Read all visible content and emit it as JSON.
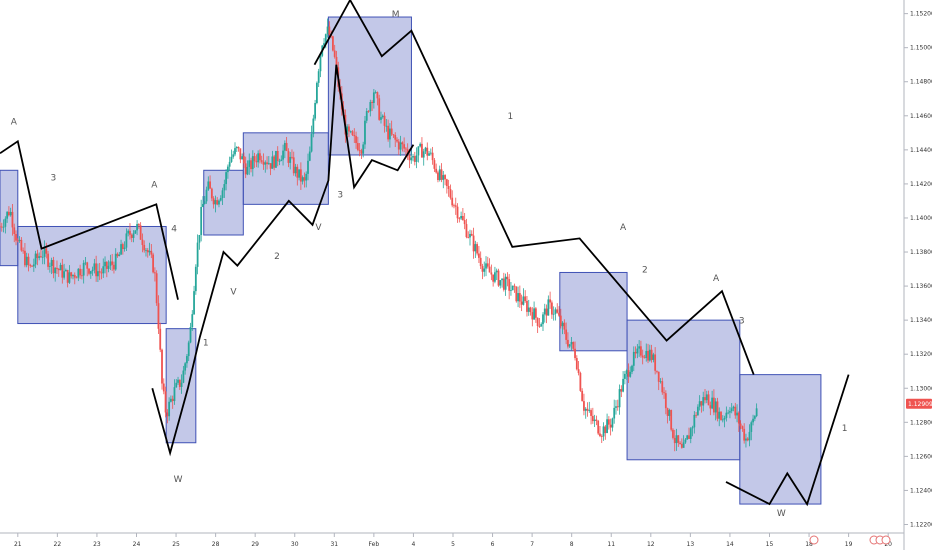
{
  "chart_data": {
    "type": "candlestick",
    "colors": {
      "up": "#26a69a",
      "down": "#ef5350",
      "box_fill": "#7986cb",
      "box_stroke": "#3f51b5",
      "wave_line": "#000000",
      "price_badge": "#ef5350"
    },
    "x_axis": {
      "ticks": [
        {
          "label": "21",
          "day": 0
        },
        {
          "label": "22",
          "day": 1
        },
        {
          "label": "23",
          "day": 2
        },
        {
          "label": "24",
          "day": 3
        },
        {
          "label": "25",
          "day": 4
        },
        {
          "label": "28",
          "day": 5
        },
        {
          "label": "29",
          "day": 6
        },
        {
          "label": "30",
          "day": 7
        },
        {
          "label": "31",
          "day": 8
        },
        {
          "label": "Feb",
          "day": 9
        },
        {
          "label": "4",
          "day": 10
        },
        {
          "label": "5",
          "day": 11
        },
        {
          "label": "6",
          "day": 12
        },
        {
          "label": "7",
          "day": 13
        },
        {
          "label": "8",
          "day": 14
        },
        {
          "label": "11",
          "day": 15
        },
        {
          "label": "12",
          "day": 16
        },
        {
          "label": "13",
          "day": 17
        },
        {
          "label": "14",
          "day": 18
        },
        {
          "label": "15",
          "day": 19
        },
        {
          "label": "18",
          "day": 20
        },
        {
          "label": "19",
          "day": 21
        },
        {
          "label": "20",
          "day": 22
        }
      ],
      "range": [
        -0.45,
        22.4
      ]
    },
    "y_axis": {
      "ylim": [
        1.1215,
        1.1528
      ],
      "tick_labels": [
        "1.15200",
        "1.15000",
        "1.14800",
        "1.14600",
        "1.14400",
        "1.14200",
        "1.14000",
        "1.13800",
        "1.13600",
        "1.13400",
        "1.13200",
        "1.13000",
        "1.12800",
        "1.12600",
        "1.12400",
        "1.12200"
      ],
      "tick_values": [
        1.152,
        1.15,
        1.148,
        1.146,
        1.144,
        1.142,
        1.14,
        1.138,
        1.136,
        1.134,
        1.132,
        1.13,
        1.128,
        1.126,
        1.124,
        1.122
      ]
    },
    "current_price": {
      "label": "1.12909",
      "value": 1.12909
    },
    "price_path": [
      [
        -0.45,
        1.1395
      ],
      [
        -0.2,
        1.1405
      ],
      [
        0.0,
        1.1385
      ],
      [
        0.3,
        1.137
      ],
      [
        0.6,
        1.138
      ],
      [
        0.9,
        1.1372
      ],
      [
        1.3,
        1.1365
      ],
      [
        1.7,
        1.1372
      ],
      [
        2.1,
        1.1368
      ],
      [
        2.5,
        1.1375
      ],
      [
        2.8,
        1.139
      ],
      [
        3.0,
        1.1395
      ],
      [
        3.2,
        1.1385
      ],
      [
        3.45,
        1.137
      ],
      [
        3.55,
        1.134
      ],
      [
        3.65,
        1.13
      ],
      [
        3.75,
        1.1285
      ],
      [
        3.95,
        1.1298
      ],
      [
        4.15,
        1.1305
      ],
      [
        4.35,
        1.133
      ],
      [
        4.5,
        1.1375
      ],
      [
        4.65,
        1.1405
      ],
      [
        4.8,
        1.1418
      ],
      [
        5.0,
        1.141
      ],
      [
        5.2,
        1.1418
      ],
      [
        5.35,
        1.1435
      ],
      [
        5.55,
        1.144
      ],
      [
        5.8,
        1.1428
      ],
      [
        6.1,
        1.1438
      ],
      [
        6.4,
        1.1432
      ],
      [
        6.75,
        1.144
      ],
      [
        7.0,
        1.1428
      ],
      [
        7.25,
        1.142
      ],
      [
        7.4,
        1.144
      ],
      [
        7.55,
        1.148
      ],
      [
        7.7,
        1.1505
      ],
      [
        7.85,
        1.151
      ],
      [
        8.0,
        1.1495
      ],
      [
        8.15,
        1.147
      ],
      [
        8.3,
        1.145
      ],
      [
        8.5,
        1.1445
      ],
      [
        8.7,
        1.1442
      ],
      [
        8.85,
        1.1465
      ],
      [
        9.0,
        1.1475
      ],
      [
        9.15,
        1.146
      ],
      [
        9.35,
        1.145
      ],
      [
        9.55,
        1.1445
      ],
      [
        9.8,
        1.144
      ],
      [
        10.0,
        1.1435
      ],
      [
        10.2,
        1.144
      ],
      [
        10.4,
        1.1438
      ],
      [
        10.65,
        1.1425
      ],
      [
        10.9,
        1.1415
      ],
      [
        11.2,
        1.14
      ],
      [
        11.5,
        1.1385
      ],
      [
        11.8,
        1.137
      ],
      [
        12.1,
        1.1365
      ],
      [
        12.4,
        1.136
      ],
      [
        12.7,
        1.1352
      ],
      [
        13.0,
        1.1345
      ],
      [
        13.2,
        1.1338
      ],
      [
        13.4,
        1.1348
      ],
      [
        13.6,
        1.1345
      ],
      [
        13.85,
        1.133
      ],
      [
        14.1,
        1.132
      ],
      [
        14.3,
        1.129
      ],
      [
        14.5,
        1.1282
      ],
      [
        14.75,
        1.1275
      ],
      [
        15.0,
        1.128
      ],
      [
        15.25,
        1.13
      ],
      [
        15.5,
        1.1315
      ],
      [
        15.75,
        1.1322
      ],
      [
        16.0,
        1.132
      ],
      [
        16.2,
        1.1308
      ],
      [
        16.4,
        1.129
      ],
      [
        16.6,
        1.127
      ],
      [
        16.8,
        1.1262
      ],
      [
        17.0,
        1.1275
      ],
      [
        17.2,
        1.129
      ],
      [
        17.4,
        1.1295
      ],
      [
        17.6,
        1.129
      ],
      [
        17.8,
        1.1282
      ],
      [
        18.0,
        1.129
      ],
      [
        18.2,
        1.1282
      ],
      [
        18.4,
        1.127
      ],
      [
        18.55,
        1.1278
      ],
      [
        18.7,
        1.129
      ]
    ],
    "boxes": [
      {
        "x0": -0.45,
        "x1": 0.0,
        "y0": 1.1372,
        "y1": 1.1428
      },
      {
        "x0": 0.0,
        "x1": 3.75,
        "y0": 1.1338,
        "y1": 1.1395
      },
      {
        "x0": 3.75,
        "x1": 4.5,
        "y0": 1.1268,
        "y1": 1.1335
      },
      {
        "x0": 4.7,
        "x1": 5.7,
        "y0": 1.139,
        "y1": 1.1428
      },
      {
        "x0": 5.7,
        "x1": 7.85,
        "y0": 1.1408,
        "y1": 1.145
      },
      {
        "x0": 7.85,
        "x1": 9.95,
        "y0": 1.1437,
        "y1": 1.1518
      },
      {
        "x0": 13.7,
        "x1": 15.4,
        "y0": 1.1322,
        "y1": 1.1368
      },
      {
        "x0": 15.4,
        "x1": 18.25,
        "y0": 1.1258,
        "y1": 1.134
      },
      {
        "x0": 18.25,
        "x1": 20.3,
        "y0": 1.1232,
        "y1": 1.1308
      }
    ],
    "wave_lines": [
      [
        [
          -0.45,
          1.1438
        ],
        [
          0.0,
          1.1445
        ],
        [
          0.6,
          1.1382
        ],
        [
          3.5,
          1.1408
        ],
        [
          4.05,
          1.1352
        ]
      ],
      [
        [
          3.4,
          1.13
        ],
        [
          3.85,
          1.1262
        ],
        [
          4.3,
          1.13
        ],
        [
          4.6,
          1.133
        ],
        [
          5.2,
          1.138
        ],
        [
          5.55,
          1.1372
        ],
        [
          6.85,
          1.141
        ],
        [
          7.45,
          1.1396
        ],
        [
          7.85,
          1.1422
        ],
        [
          8.05,
          1.149
        ],
        [
          8.5,
          1.1418
        ],
        [
          8.95,
          1.1434
        ],
        [
          9.6,
          1.1428
        ],
        [
          10.0,
          1.1443
        ]
      ],
      [
        [
          7.5,
          1.149
        ],
        [
          8.4,
          1.1528
        ],
        [
          9.2,
          1.1495
        ],
        [
          9.95,
          1.151
        ],
        [
          12.5,
          1.1383
        ],
        [
          14.2,
          1.1388
        ],
        [
          16.4,
          1.1328
        ],
        [
          17.8,
          1.1357
        ],
        [
          18.6,
          1.1308
        ]
      ],
      [
        [
          17.9,
          1.1245
        ],
        [
          19.0,
          1.1232
        ],
        [
          19.45,
          1.125
        ],
        [
          19.95,
          1.1232
        ],
        [
          21.0,
          1.1308
        ]
      ]
    ],
    "wave_labels": [
      {
        "text": "A",
        "x": -0.1,
        "y": 1.1455
      },
      {
        "text": "3",
        "x": 0.9,
        "y": 1.1422
      },
      {
        "text": "A",
        "x": 3.45,
        "y": 1.1418
      },
      {
        "text": "4",
        "x": 3.95,
        "y": 1.1392
      },
      {
        "text": "W",
        "x": 4.05,
        "y": 1.1245
      },
      {
        "text": "1",
        "x": 4.75,
        "y": 1.1325
      },
      {
        "text": "V",
        "x": 5.45,
        "y": 1.1355
      },
      {
        "text": "2",
        "x": 6.55,
        "y": 1.1376
      },
      {
        "text": "V",
        "x": 7.6,
        "y": 1.1393
      },
      {
        "text": "3",
        "x": 8.15,
        "y": 1.1412
      },
      {
        "text": "M",
        "x": 9.55,
        "y": 1.1518
      },
      {
        "text": "1",
        "x": 12.45,
        "y": 1.1458
      },
      {
        "text": "A",
        "x": 15.3,
        "y": 1.1393
      },
      {
        "text": "2",
        "x": 15.85,
        "y": 1.1368
      },
      {
        "text": "A",
        "x": 17.65,
        "y": 1.1363
      },
      {
        "text": "3",
        "x": 18.3,
        "y": 1.1338
      },
      {
        "text": "W",
        "x": 19.3,
        "y": 1.1225
      },
      {
        "text": "1",
        "x": 20.9,
        "y": 1.1275
      }
    ]
  }
}
